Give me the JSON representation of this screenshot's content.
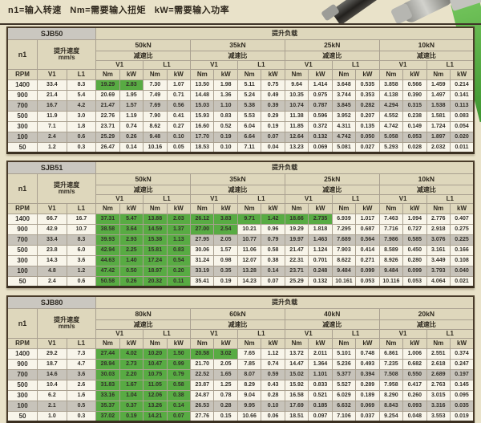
{
  "legend": "n1=输入转速   Nm=需要输入扭矩   kW=需要输入功率",
  "labels": {
    "lift_load": "提升负载",
    "n1": "n1",
    "speed": "提升速度",
    "speed_unit": "mm/s",
    "ratio": "减速比",
    "v1": "V1",
    "l1": "L1",
    "rpm": "RPM",
    "nm": "Nm",
    "kw": "kW"
  },
  "colors": {
    "page_bg": "#e9e2c9",
    "header_bg": "#ded7bc",
    "model_bg": "#cac7c0",
    "row_white": "#f8f5ea",
    "row_gray": "#c7c3ba",
    "highlight_green": "#58ab43",
    "ribbon_green": "#4fa03a",
    "border_dark": "#493b2a"
  },
  "tables": [
    {
      "model": "SJB50",
      "loads": [
        "50kN",
        "35kN",
        "25kN",
        "10kN"
      ],
      "rows": [
        {
          "rpm": "1400",
          "v1": "33.4",
          "l1": "8.3",
          "green": 2,
          "values": [
            "19.29",
            "2.83",
            "7.30",
            "1.07",
            "13.50",
            "1.98",
            "5.11",
            "0.75",
            "9.64",
            "1.414",
            "3.648",
            "0.535",
            "3.858",
            "0.566",
            "1.459",
            "0.214"
          ]
        },
        {
          "rpm": "900",
          "v1": "21.4",
          "l1": "5.4",
          "green": 0,
          "values": [
            "20.69",
            "1.95",
            "7.49",
            "0.71",
            "14.48",
            "1.36",
            "5.24",
            "0.49",
            "10.35",
            "0.975",
            "3.744",
            "0.353",
            "4.138",
            "0.390",
            "1.497",
            "0.141"
          ]
        },
        {
          "rpm": "700",
          "v1": "16.7",
          "l1": "4.2",
          "green": 0,
          "values": [
            "21.47",
            "1.57",
            "7.69",
            "0.56",
            "15.03",
            "1.10",
            "5.38",
            "0.39",
            "10.74",
            "0.787",
            "3.845",
            "0.282",
            "4.294",
            "0.315",
            "1.538",
            "0.113"
          ]
        },
        {
          "rpm": "500",
          "v1": "11.9",
          "l1": "3.0",
          "green": 0,
          "values": [
            "22.76",
            "1.19",
            "7.90",
            "0.41",
            "15.93",
            "0.83",
            "5.53",
            "0.29",
            "11.38",
            "0.596",
            "3.952",
            "0.207",
            "4.552",
            "0.238",
            "1.581",
            "0.083"
          ]
        },
        {
          "rpm": "300",
          "v1": "7.1",
          "l1": "1.8",
          "green": 0,
          "values": [
            "23.71",
            "0.74",
            "8.62",
            "0.27",
            "16.60",
            "0.52",
            "6.04",
            "0.19",
            "11.85",
            "0.372",
            "4.311",
            "0.135",
            "4.742",
            "0.149",
            "1.724",
            "0.054"
          ]
        },
        {
          "rpm": "100",
          "v1": "2.4",
          "l1": "0.6",
          "green": 0,
          "values": [
            "25.29",
            "0.26",
            "9.48",
            "0.10",
            "17.70",
            "0.19",
            "6.64",
            "0.07",
            "12.64",
            "0.132",
            "4.742",
            "0.050",
            "5.058",
            "0.053",
            "1.897",
            "0.020"
          ]
        },
        {
          "rpm": "50",
          "v1": "1.2",
          "l1": "0.3",
          "green": 0,
          "values": [
            "26.47",
            "0.14",
            "10.16",
            "0.05",
            "18.53",
            "0.10",
            "7.11",
            "0.04",
            "13.23",
            "0.069",
            "5.081",
            "0.027",
            "5.293",
            "0.028",
            "2.032",
            "0.011"
          ]
        }
      ]
    },
    {
      "model": "SJB51",
      "loads": [
        "50kN",
        "35kN",
        "25kN",
        "10kN"
      ],
      "rows": [
        {
          "rpm": "1400",
          "v1": "66.7",
          "l1": "16.7",
          "green": 10,
          "values": [
            "37.31",
            "5.47",
            "13.88",
            "2.03",
            "26.12",
            "3.83",
            "9.71",
            "1.42",
            "18.66",
            "2.735",
            "6.939",
            "1.017",
            "7.463",
            "1.094",
            "2.776",
            "0.407"
          ]
        },
        {
          "rpm": "900",
          "v1": "42.9",
          "l1": "10.7",
          "green": 6,
          "values": [
            "38.58",
            "3.64",
            "14.59",
            "1.37",
            "27.00",
            "2.54",
            "10.21",
            "0.96",
            "19.29",
            "1.818",
            "7.295",
            "0.687",
            "7.716",
            "0.727",
            "2.918",
            "0.275"
          ]
        },
        {
          "rpm": "700",
          "v1": "33.4",
          "l1": "8.3",
          "green": 4,
          "values": [
            "39.93",
            "2.93",
            "15.38",
            "1.13",
            "27.95",
            "2.05",
            "10.77",
            "0.79",
            "19.97",
            "1.463",
            "7.689",
            "0.564",
            "7.986",
            "0.585",
            "3.076",
            "0.225"
          ]
        },
        {
          "rpm": "500",
          "v1": "23.8",
          "l1": "6.0",
          "green": 4,
          "values": [
            "42.94",
            "2.25",
            "15.81",
            "0.83",
            "30.06",
            "1.57",
            "11.06",
            "0.58",
            "21.47",
            "1.124",
            "7.903",
            "0.414",
            "8.589",
            "0.450",
            "3.161",
            "0.166"
          ]
        },
        {
          "rpm": "300",
          "v1": "14.3",
          "l1": "3.6",
          "green": 4,
          "values": [
            "44.63",
            "1.40",
            "17.24",
            "0.54",
            "31.24",
            "0.98",
            "12.07",
            "0.38",
            "22.31",
            "0.701",
            "8.622",
            "0.271",
            "8.926",
            "0.280",
            "3.449",
            "0.108"
          ]
        },
        {
          "rpm": "100",
          "v1": "4.8",
          "l1": "1.2",
          "green": 4,
          "values": [
            "47.42",
            "0.50",
            "18.97",
            "0.20",
            "33.19",
            "0.35",
            "13.28",
            "0.14",
            "23.71",
            "0.248",
            "9.484",
            "0.099",
            "9.484",
            "0.099",
            "3.793",
            "0.040"
          ]
        },
        {
          "rpm": "50",
          "v1": "2.4",
          "l1": "0.6",
          "green": 4,
          "values": [
            "50.58",
            "0.26",
            "20.32",
            "0.11",
            "35.41",
            "0.19",
            "14.23",
            "0.07",
            "25.29",
            "0.132",
            "10.161",
            "0.053",
            "10.116",
            "0.053",
            "4.064",
            "0.021"
          ]
        }
      ]
    },
    {
      "model": "SJB80",
      "loads": [
        "80kN",
        "60kN",
        "40kN",
        "20kN"
      ],
      "rows": [
        {
          "rpm": "1400",
          "v1": "29.2",
          "l1": "7.3",
          "green": 6,
          "values": [
            "27.44",
            "4.02",
            "10.20",
            "1.50",
            "20.58",
            "3.02",
            "7.65",
            "1.12",
            "13.72",
            "2.011",
            "5.101",
            "0.748",
            "6.861",
            "1.006",
            "2.551",
            "0.374"
          ]
        },
        {
          "rpm": "900",
          "v1": "18.7",
          "l1": "4.7",
          "green": 4,
          "values": [
            "28.94",
            "2.73",
            "10.47",
            "0.99",
            "21.70",
            "2.05",
            "7.85",
            "0.74",
            "14.47",
            "1.364",
            "5.236",
            "0.493",
            "7.235",
            "0.682",
            "2.618",
            "0.247"
          ]
        },
        {
          "rpm": "700",
          "v1": "14.6",
          "l1": "3.6",
          "green": 4,
          "values": [
            "30.03",
            "2.20",
            "10.75",
            "0.79",
            "22.52",
            "1.65",
            "8.07",
            "0.59",
            "15.02",
            "1.101",
            "5.377",
            "0.394",
            "7.508",
            "0.550",
            "2.689",
            "0.197"
          ]
        },
        {
          "rpm": "500",
          "v1": "10.4",
          "l1": "2.6",
          "green": 4,
          "values": [
            "31.83",
            "1.67",
            "11.05",
            "0.58",
            "23.87",
            "1.25",
            "8.29",
            "0.43",
            "15.92",
            "0.833",
            "5.527",
            "0.289",
            "7.958",
            "0.417",
            "2.763",
            "0.145"
          ]
        },
        {
          "rpm": "300",
          "v1": "6.2",
          "l1": "1.6",
          "green": 4,
          "values": [
            "33.16",
            "1.04",
            "12.06",
            "0.38",
            "24.87",
            "0.78",
            "9.04",
            "0.28",
            "16.58",
            "0.521",
            "6.029",
            "0.189",
            "8.290",
            "0.260",
            "3.015",
            "0.095"
          ]
        },
        {
          "rpm": "100",
          "v1": "2.1",
          "l1": "0.5",
          "green": 4,
          "values": [
            "35.37",
            "0.37",
            "13.26",
            "0.14",
            "26.53",
            "0.28",
            "9.95",
            "0.10",
            "17.69",
            "0.185",
            "6.632",
            "0.069",
            "8.843",
            "0.093",
            "3.316",
            "0.035"
          ]
        },
        {
          "rpm": "50",
          "v1": "1.0",
          "l1": "0.3",
          "green": 4,
          "values": [
            "37.02",
            "0.19",
            "14.21",
            "0.07",
            "27.76",
            "0.15",
            "10.66",
            "0.06",
            "18.51",
            "0.097",
            "7.106",
            "0.037",
            "9.254",
            "0.048",
            "3.553",
            "0.019"
          ]
        }
      ]
    }
  ]
}
